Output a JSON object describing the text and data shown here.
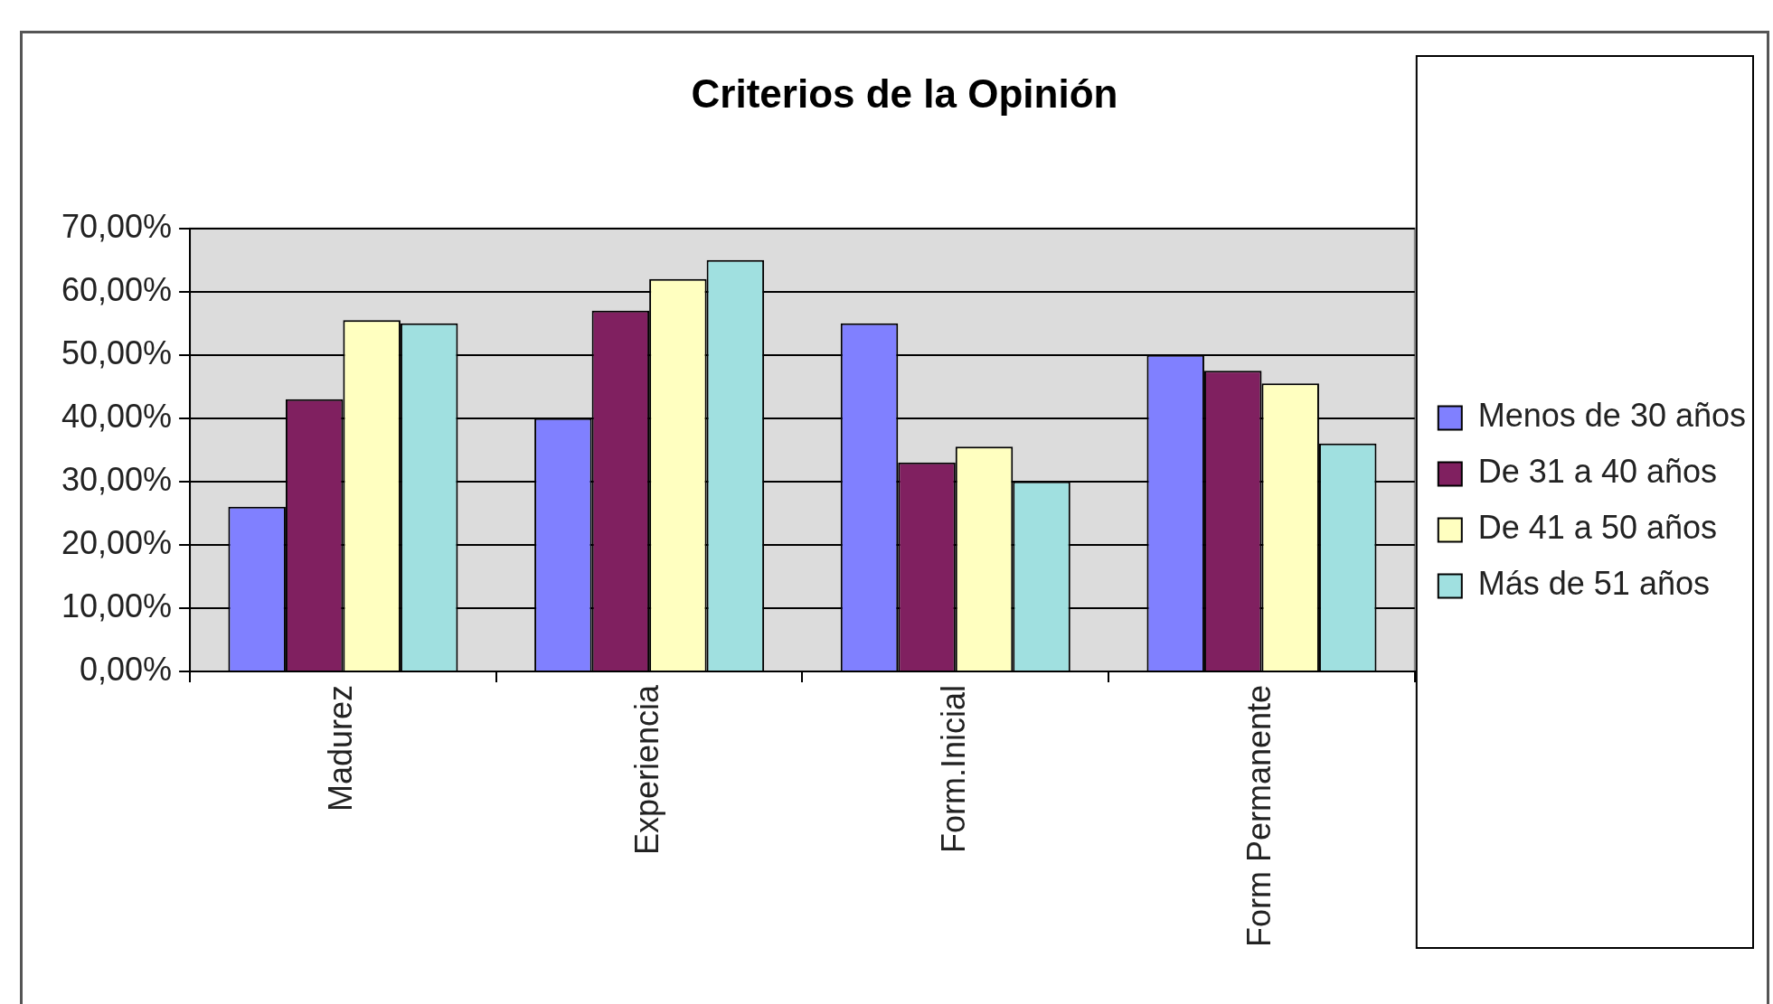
{
  "chart_data": {
    "type": "bar",
    "title": "Criterios de la Opinión",
    "categories": [
      "Madurez",
      "Experiencia",
      "Form.Inicial",
      "Form Permanente"
    ],
    "series": [
      {
        "name": "Menos de 30 años",
        "color": "#8080ff",
        "values": [
          26,
          40,
          55,
          50
        ]
      },
      {
        "name": "De 31 a 40 años",
        "color": "#802060",
        "values": [
          43,
          57,
          33,
          47.5
        ]
      },
      {
        "name": "De 41 a 50 años",
        "color": "#ffffc0",
        "values": [
          55.5,
          62,
          35.5,
          45.5
        ]
      },
      {
        "name": "Más de 51 años",
        "color": "#a0e0e0",
        "values": [
          55,
          65,
          30,
          36
        ]
      }
    ],
    "ylim": [
      0,
      70
    ],
    "yticks": [
      {
        "value": 0,
        "label": "0,00%"
      },
      {
        "value": 10,
        "label": "10,00%"
      },
      {
        "value": 20,
        "label": "20,00%"
      },
      {
        "value": 30,
        "label": "30,00%"
      },
      {
        "value": 40,
        "label": "40,00%"
      },
      {
        "value": 50,
        "label": "50,00%"
      },
      {
        "value": 60,
        "label": "60,00%"
      },
      {
        "value": 70,
        "label": "70,00%"
      }
    ],
    "grid": "y",
    "legend": "right"
  }
}
